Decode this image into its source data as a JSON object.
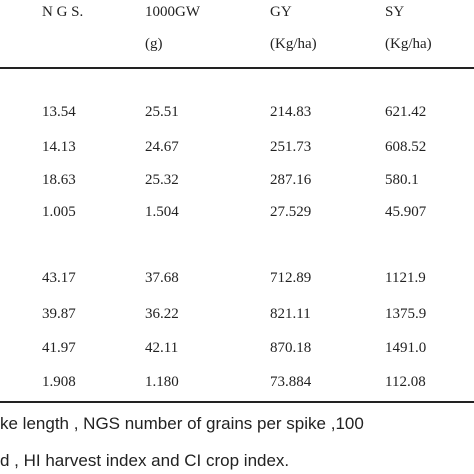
{
  "table": {
    "header": [
      [
        "N G S.",
        "1000GW",
        "GY",
        "SY"
      ],
      [
        "",
        "(g)",
        "(Kg/ha)",
        "(Kg/ha)"
      ]
    ],
    "rows": [
      [
        "13.54",
        "25.51",
        "214.83",
        "621.42"
      ],
      [
        "14.13",
        "24.67",
        "251.73",
        "608.52"
      ],
      [
        "18.63",
        "25.32",
        "287.16",
        "580.1"
      ],
      [
        "1.005",
        "1.504",
        "27.529",
        "45.907"
      ],
      [
        "43.17",
        "37.68",
        "712.89",
        "1121.9"
      ],
      [
        "39.87",
        "36.22",
        "821.11",
        "1375.9"
      ],
      [
        "41.97",
        "42.11",
        "870.18",
        "1491.0"
      ],
      [
        "1.908",
        "1.180",
        "73.884",
        "112.08"
      ]
    ]
  },
  "footnote": [
    "ke length , NGS number of grains per spike ,100",
    "d , HI  harvest index and CI crop index."
  ]
}
